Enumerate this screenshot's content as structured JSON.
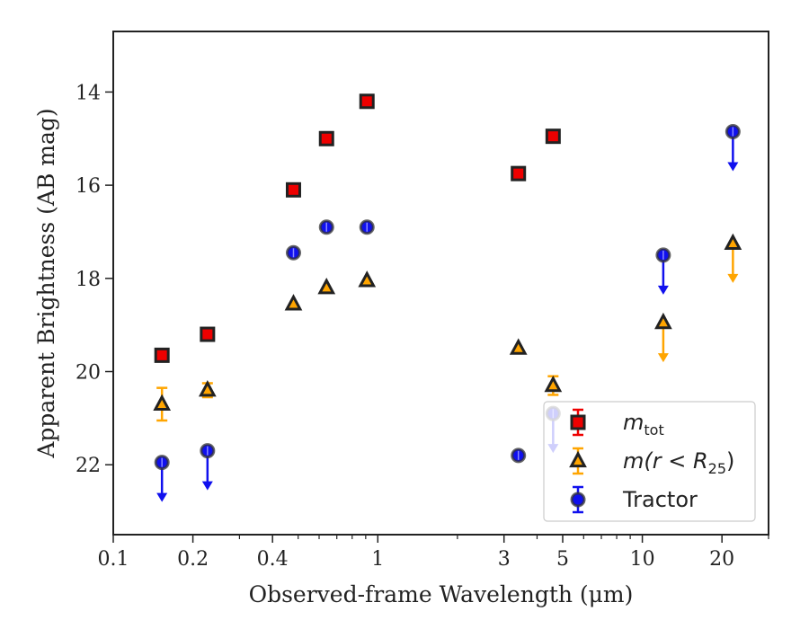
{
  "chart_data": {
    "type": "scatter",
    "xlabel": "Observed-frame Wavelength (μm)",
    "ylabel": "Apparent Brightness (AB mag)",
    "x_scale": "log",
    "xlim": [
      0.1,
      30
    ],
    "ylim": [
      23.5,
      12.7
    ],
    "y_inverted": true,
    "x_ticks": [
      {
        "value": 0.1,
        "label": "0.1"
      },
      {
        "value": 0.2,
        "label": "0.2"
      },
      {
        "value": 0.4,
        "label": "0.4"
      },
      {
        "value": 1,
        "label": "1"
      },
      {
        "value": 3,
        "label": "3"
      },
      {
        "value": 5,
        "label": "5"
      },
      {
        "value": 10,
        "label": "10"
      },
      {
        "value": 20,
        "label": "20"
      }
    ],
    "y_ticks": [
      {
        "value": 14,
        "label": "14"
      },
      {
        "value": 16,
        "label": "16"
      },
      {
        "value": 18,
        "label": "18"
      },
      {
        "value": 20,
        "label": "20"
      },
      {
        "value": 22,
        "label": "22"
      }
    ],
    "grid": false,
    "legend_position": "lower-right",
    "series": [
      {
        "key": "mtot",
        "legend": {
          "base": "m",
          "sub": "tot",
          "suffix": ""
        },
        "marker": "square",
        "color": "#ee0000",
        "errcolor": "#ee0000",
        "points": [
          {
            "x": 0.1528,
            "y": 19.65
          },
          {
            "x": 0.2271,
            "y": 19.2
          },
          {
            "x": 0.48,
            "y": 16.1
          },
          {
            "x": 0.64,
            "y": 15.0
          },
          {
            "x": 0.91,
            "y": 14.2
          },
          {
            "x": 3.4,
            "y": 15.75
          },
          {
            "x": 4.6,
            "y": 14.95
          }
        ]
      },
      {
        "key": "mr25",
        "legend": {
          "base": "m",
          "paren": "(r < R",
          "sub": "25",
          "suffix": ")"
        },
        "marker": "triangle",
        "color": "#ffa500",
        "errcolor": "#ffa500",
        "points": [
          {
            "x": 0.1528,
            "y": 20.7,
            "err": 0.35
          },
          {
            "x": 0.2271,
            "y": 20.4,
            "err": 0.15
          },
          {
            "x": 0.48,
            "y": 18.55
          },
          {
            "x": 0.64,
            "y": 18.2
          },
          {
            "x": 0.91,
            "y": 18.05
          },
          {
            "x": 3.4,
            "y": 19.5
          },
          {
            "x": 4.6,
            "y": 20.3,
            "err": 0.2
          },
          {
            "x": 12,
            "y": 18.95,
            "upper_limit": true
          },
          {
            "x": 22,
            "y": 17.25,
            "upper_limit": true
          }
        ]
      },
      {
        "key": "tractor",
        "legend": {
          "base": "Tractor"
        },
        "marker": "circle",
        "color": "#1010ee",
        "errcolor": "#1010ee",
        "points": [
          {
            "x": 0.1528,
            "y": 21.95,
            "upper_limit": true
          },
          {
            "x": 0.2271,
            "y": 21.7,
            "upper_limit": true
          },
          {
            "x": 0.48,
            "y": 17.45
          },
          {
            "x": 0.64,
            "y": 16.9
          },
          {
            "x": 0.91,
            "y": 16.9
          },
          {
            "x": 3.4,
            "y": 21.8
          },
          {
            "x": 4.6,
            "y": 20.9,
            "upper_limit": true
          },
          {
            "x": 12,
            "y": 17.5,
            "upper_limit": true
          },
          {
            "x": 22,
            "y": 14.85,
            "upper_limit": true
          }
        ]
      }
    ]
  }
}
